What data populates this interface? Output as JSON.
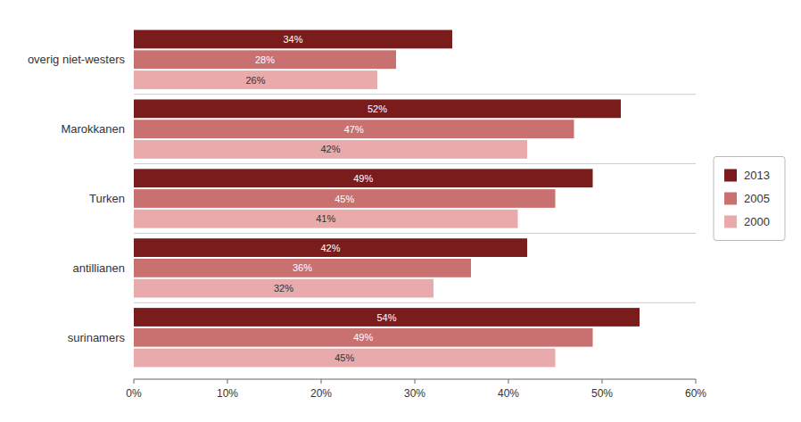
{
  "chart_data": {
    "type": "bar",
    "orientation": "horizontal",
    "categories": [
      "surinamers",
      "antillianen",
      "Turken",
      "Marokkanen",
      "overig niet-westers"
    ],
    "series": [
      {
        "name": "2013",
        "color": "#7B1C1C",
        "values": [
          54,
          42,
          49,
          52,
          34
        ],
        "value_labels": [
          "54%",
          "42%",
          "49%",
          "52%",
          "34%"
        ]
      },
      {
        "name": "2005",
        "color": "#C97070",
        "values": [
          49,
          36,
          45,
          47,
          28
        ],
        "value_labels": [
          "49%",
          "36%",
          "45%",
          "47%",
          "28%"
        ]
      },
      {
        "name": "2000",
        "color": "#E8AAAA",
        "values": [
          45,
          32,
          41,
          42,
          26
        ],
        "value_labels": [
          "45%",
          "32%",
          "41%",
          "42%",
          "26%"
        ]
      }
    ],
    "xlim": [
      0,
      60
    ],
    "xticks": [
      {
        "value": 0,
        "label": "0%"
      },
      {
        "value": 10,
        "label": "10%"
      },
      {
        "value": 20,
        "label": "20%"
      },
      {
        "value": 30,
        "label": "30%"
      },
      {
        "value": 40,
        "label": "40%"
      },
      {
        "value": 50,
        "label": "50%"
      },
      {
        "value": 60,
        "label": "60%"
      }
    ],
    "grid": false,
    "legend": "right",
    "data_labels": true
  }
}
